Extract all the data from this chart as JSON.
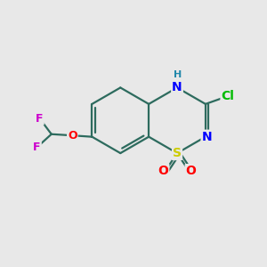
{
  "background_color": "#e8e8e8",
  "bond_color": "#2d6b5e",
  "atom_colors": {
    "S": "#cccc00",
    "O": "#ff0000",
    "N": "#0000ff",
    "H": "#2288aa",
    "Cl": "#00bb00",
    "F": "#cc00cc",
    "C": "#2d6b5e"
  },
  "figsize": [
    3.0,
    3.0
  ],
  "dpi": 100
}
